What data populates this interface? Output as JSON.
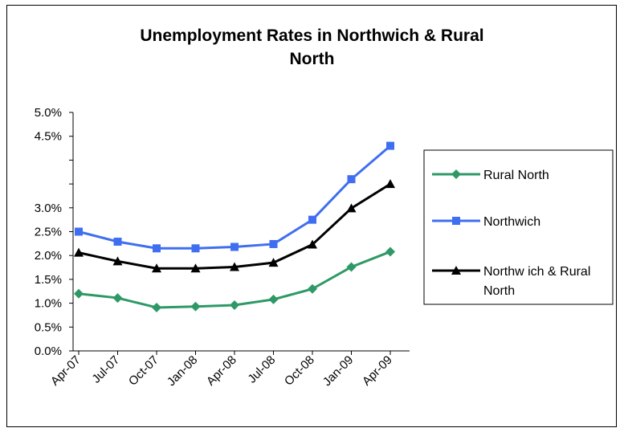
{
  "chart_data": {
    "type": "line",
    "title_lines": [
      "Unemployment Rates in Northwich & Rural",
      "North"
    ],
    "categories": [
      "Apr-07",
      "Jul-07",
      "Oct-07",
      "Jan-08",
      "Apr-08",
      "Jul-08",
      "Oct-08",
      "Jan-09",
      "Apr-09"
    ],
    "y_tick_labels": [
      "0.0%",
      "0.5%",
      "1.0%",
      "1.5%",
      "2.0%",
      "2.5%",
      "3.0%",
      "4.5%",
      "5.0%"
    ],
    "ylim": [
      0,
      5
    ],
    "grid": false,
    "legend_position": "right",
    "series": [
      {
        "name": "Rural North",
        "color": "#2e9966",
        "marker": "diamond",
        "values": [
          1.2,
          1.11,
          0.91,
          0.93,
          0.96,
          1.08,
          1.3,
          1.76,
          2.08
        ]
      },
      {
        "name": "Northwich",
        "color": "#3f6ff0",
        "marker": "square",
        "values": [
          2.5,
          2.29,
          2.15,
          2.15,
          2.18,
          2.24,
          2.75,
          3.6,
          4.3
        ]
      },
      {
        "name": "Northwich & Rural North",
        "legend_lines": [
          "Northw ich & Rural",
          "North"
        ],
        "color": "#000000",
        "marker": "triangle",
        "values": [
          2.06,
          1.88,
          1.73,
          1.73,
          1.76,
          1.85,
          2.23,
          2.99,
          3.5
        ]
      }
    ]
  }
}
